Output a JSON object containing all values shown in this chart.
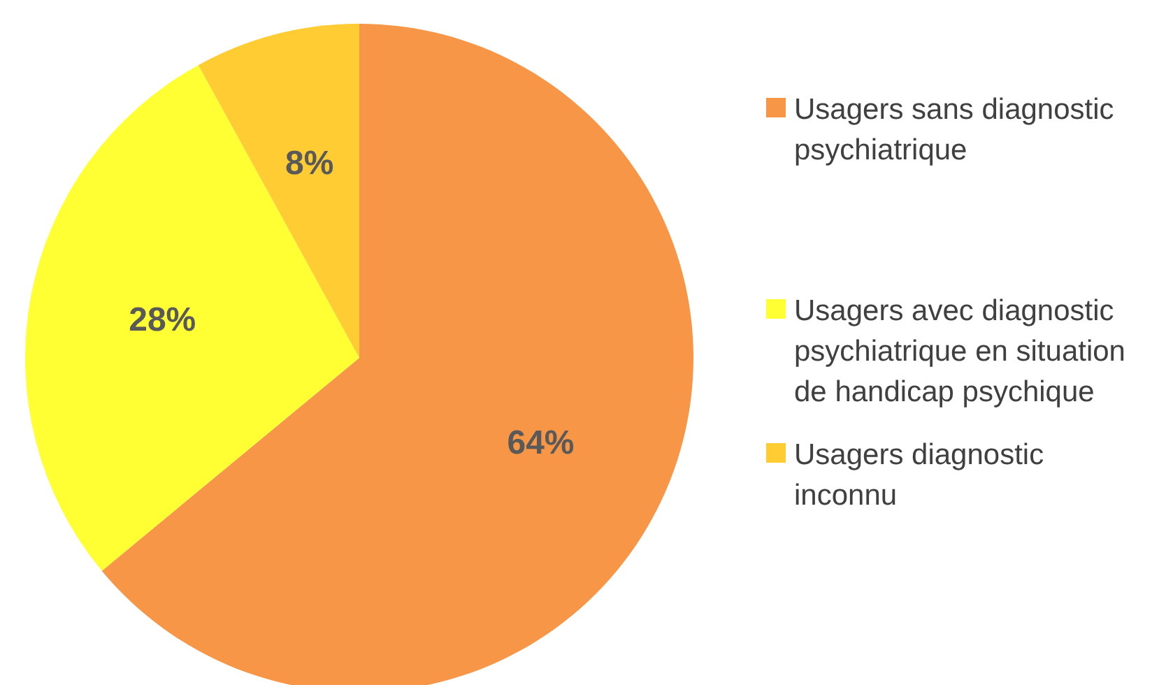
{
  "chart_data": {
    "type": "pie",
    "categories": [
      "Usagers sans diagnostic psychiatrique",
      "Usagers avec diagnostic psychiatrique en situation de handicap psychique",
      "Usagers diagnostic inconnu"
    ],
    "values": [
      64,
      28,
      8
    ],
    "colors": [
      "#f79646",
      "#ffff33",
      "#ffcc33"
    ],
    "value_labels": [
      "64%",
      "28%",
      "8%"
    ],
    "legend": "right"
  }
}
